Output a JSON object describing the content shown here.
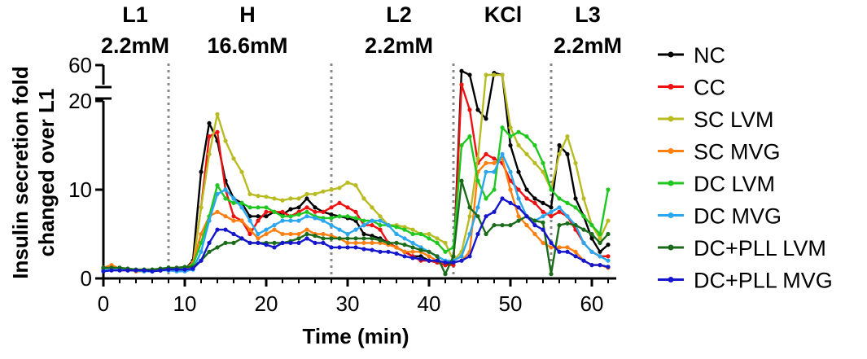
{
  "chart_data": {
    "type": "line",
    "xlabel": "Time (min)",
    "ylabel_lines": [
      "Insulin secretion fold",
      "changed over L1"
    ],
    "xlim": [
      0,
      62
    ],
    "xticks": [
      "0",
      "10",
      "20",
      "30",
      "40",
      "50",
      "60"
    ],
    "ylim_lower": [
      0,
      20
    ],
    "ylim_upper": [
      50,
      60
    ],
    "yticks_lower": [
      "0",
      "10",
      "20"
    ],
    "yticks_upper": [
      "60"
    ],
    "phase_lines": [
      8,
      28,
      43,
      55
    ],
    "phases": [
      {
        "name": "L1",
        "conc": "2.2mM"
      },
      {
        "name": "H",
        "conc": "16.6mM"
      },
      {
        "name": "L2",
        "conc": "2.2mM"
      },
      {
        "name": "KCl",
        "conc": ""
      },
      {
        "name": "L3",
        "conc": "2.2mM"
      }
    ],
    "x": [
      0,
      1,
      2,
      3,
      4,
      5,
      6,
      7,
      8,
      9,
      10,
      11,
      12,
      13,
      14,
      15,
      16,
      17,
      18,
      19,
      20,
      21,
      22,
      23,
      24,
      25,
      26,
      27,
      28,
      29,
      30,
      31,
      32,
      33,
      34,
      35,
      36,
      37,
      38,
      39,
      40,
      41,
      42,
      43,
      44,
      45,
      46,
      47,
      48,
      49,
      50,
      51,
      52,
      53,
      54,
      55,
      56,
      57,
      58,
      59,
      60,
      61,
      62
    ],
    "series": [
      {
        "name": "NC",
        "color": "#000000",
        "values": [
          1.0,
          1.3,
          1.0,
          0.9,
          0.9,
          0.9,
          0.8,
          0.9,
          1.0,
          1.0,
          1.0,
          2.0,
          12.0,
          17.5,
          15.5,
          11.0,
          9.0,
          8.5,
          7.0,
          7.0,
          7.0,
          7.5,
          7.2,
          7.8,
          8.0,
          9.0,
          8.0,
          7.5,
          7.2,
          7.0,
          6.8,
          6.5,
          5.0,
          4.8,
          4.5,
          4.0,
          3.5,
          3.0,
          2.5,
          2.5,
          2.0,
          1.8,
          1.5,
          1.8,
          57.0,
          55.0,
          19.0,
          18.0,
          56.0,
          55.0,
          15.0,
          12.0,
          10.0,
          9.0,
          8.5,
          8.0,
          15.0,
          14.0,
          9.0,
          7.0,
          4.5,
          3.0,
          3.8
        ]
      },
      {
        "name": "CC",
        "color": "#ee1111",
        "values": [
          1.2,
          1.3,
          1.1,
          1.0,
          0.9,
          0.9,
          0.9,
          0.9,
          1.0,
          1.0,
          1.1,
          1.5,
          8.0,
          16.0,
          16.5,
          10.0,
          7.0,
          6.5,
          5.0,
          6.5,
          7.5,
          7.5,
          7.5,
          7.0,
          7.5,
          8.0,
          7.5,
          7.5,
          8.0,
          8.5,
          8.0,
          7.5,
          6.0,
          6.0,
          5.5,
          4.0,
          3.5,
          3.0,
          2.5,
          2.0,
          2.0,
          1.8,
          1.5,
          1.5,
          45.0,
          19.0,
          13.0,
          14.0,
          13.5,
          13.0,
          11.0,
          10.0,
          9.0,
          8.5,
          7.5,
          7.0,
          7.5,
          7.0,
          5.5,
          4.0,
          3.0,
          2.5,
          2.5
        ]
      },
      {
        "name": "SC LVM",
        "color": "#b8bc22",
        "values": [
          1.1,
          1.2,
          1.0,
          1.0,
          0.9,
          0.9,
          1.0,
          1.0,
          1.1,
          1.2,
          1.2,
          1.5,
          8.0,
          14.0,
          18.5,
          15.5,
          13.5,
          12.0,
          9.5,
          9.3,
          9.2,
          9.0,
          8.8,
          9.0,
          9.0,
          9.5,
          9.5,
          9.8,
          10.0,
          10.2,
          10.8,
          10.5,
          9.0,
          8.0,
          7.0,
          6.0,
          6.0,
          5.8,
          5.5,
          5.0,
          5.0,
          4.5,
          4.0,
          2.0,
          3.0,
          7.0,
          13.5,
          55.0,
          55.0,
          55.0,
          17.0,
          15.0,
          14.0,
          13.0,
          12.0,
          10.0,
          14.0,
          16.0,
          13.0,
          9.0,
          6.0,
          4.5,
          6.5
        ]
      },
      {
        "name": "SC MVG",
        "color": "#ff7f11",
        "values": [
          1.2,
          1.5,
          1.1,
          1.0,
          0.8,
          0.8,
          0.9,
          0.9,
          0.9,
          1.0,
          1.0,
          1.8,
          5.0,
          7.0,
          7.5,
          7.0,
          6.5,
          6.5,
          5.5,
          4.5,
          5.0,
          5.5,
          5.0,
          5.0,
          5.0,
          5.5,
          5.0,
          5.0,
          4.8,
          4.5,
          4.0,
          4.0,
          4.0,
          4.0,
          4.0,
          3.8,
          3.5,
          3.0,
          3.0,
          3.0,
          2.5,
          2.0,
          1.8,
          1.8,
          2.0,
          3.0,
          12.0,
          13.0,
          13.0,
          13.5,
          10.0,
          7.0,
          6.0,
          5.0,
          4.0,
          3.5,
          3.5,
          3.5,
          3.0,
          2.0,
          1.5,
          1.5,
          1.2
        ]
      },
      {
        "name": "DC LVM",
        "color": "#1ec81e",
        "values": [
          1.0,
          1.0,
          1.0,
          1.0,
          0.9,
          0.9,
          0.9,
          1.0,
          1.0,
          1.1,
          1.2,
          1.5,
          4.0,
          7.0,
          10.5,
          9.0,
          8.5,
          8.5,
          8.0,
          8.0,
          8.0,
          7.5,
          7.0,
          7.0,
          7.2,
          7.5,
          7.0,
          6.8,
          6.8,
          7.0,
          7.0,
          6.8,
          6.5,
          6.5,
          6.0,
          6.0,
          5.8,
          5.5,
          5.0,
          5.0,
          4.5,
          4.0,
          3.0,
          3.5,
          15.0,
          16.0,
          11.0,
          9.0,
          10.0,
          17.0,
          16.0,
          16.5,
          16.0,
          15.0,
          13.0,
          10.0,
          9.0,
          8.5,
          8.0,
          7.0,
          6.0,
          5.0,
          10.0
        ]
      },
      {
        "name": "DC MVG",
        "color": "#2aa7ef",
        "values": [
          1.0,
          1.1,
          1.0,
          0.9,
          0.9,
          0.8,
          0.8,
          0.9,
          0.9,
          0.8,
          0.8,
          1.0,
          3.0,
          6.5,
          9.5,
          10.0,
          9.0,
          8.0,
          6.5,
          5.0,
          5.5,
          6.0,
          6.5,
          6.5,
          6.5,
          7.0,
          6.8,
          6.5,
          6.0,
          5.5,
          5.0,
          5.5,
          6.0,
          6.5,
          6.5,
          6.0,
          5.0,
          4.5,
          4.0,
          3.5,
          3.0,
          2.5,
          2.0,
          2.0,
          2.5,
          5.0,
          8.0,
          12.0,
          12.0,
          14.0,
          12.0,
          9.0,
          7.0,
          6.5,
          7.0,
          7.5,
          8.0,
          7.0,
          6.0,
          4.0,
          3.0,
          2.5,
          2.0
        ]
      },
      {
        "name": "DC+PLL LVM",
        "color": "#1a6b1a",
        "values": [
          1.2,
          1.2,
          1.2,
          1.1,
          1.0,
          1.0,
          1.0,
          1.1,
          1.2,
          1.2,
          1.3,
          1.3,
          2.0,
          3.0,
          3.5,
          4.0,
          4.0,
          4.5,
          4.0,
          4.0,
          4.0,
          4.0,
          4.0,
          4.2,
          4.5,
          5.0,
          4.8,
          4.5,
          4.5,
          4.5,
          4.5,
          4.5,
          4.5,
          4.5,
          4.3,
          4.0,
          4.0,
          3.8,
          3.5,
          3.2,
          3.0,
          2.5,
          0.5,
          2.5,
          11.0,
          8.0,
          7.0,
          5.0,
          6.0,
          6.0,
          6.0,
          6.5,
          7.0,
          6.5,
          6.3,
          0.5,
          6.0,
          6.2,
          6.0,
          5.5,
          5.0,
          4.0,
          5.0
        ]
      },
      {
        "name": "DC+PLL MVG",
        "color": "#1515cc",
        "values": [
          0.8,
          0.9,
          0.9,
          0.9,
          0.9,
          0.9,
          0.8,
          0.9,
          1.0,
          1.0,
          1.0,
          1.1,
          2.0,
          4.0,
          5.5,
          5.5,
          5.0,
          4.5,
          4.0,
          4.0,
          3.8,
          3.5,
          4.0,
          4.0,
          4.0,
          4.5,
          4.0,
          4.0,
          3.5,
          3.5,
          3.5,
          3.5,
          3.3,
          3.2,
          3.0,
          3.0,
          2.8,
          2.5,
          2.3,
          2.2,
          2.0,
          2.0,
          1.8,
          1.8,
          2.0,
          2.5,
          5.0,
          7.0,
          7.5,
          9.0,
          8.5,
          8.0,
          7.0,
          6.0,
          5.5,
          4.0,
          3.0,
          3.0,
          2.5,
          2.0,
          1.5,
          1.5,
          1.3
        ]
      }
    ]
  }
}
